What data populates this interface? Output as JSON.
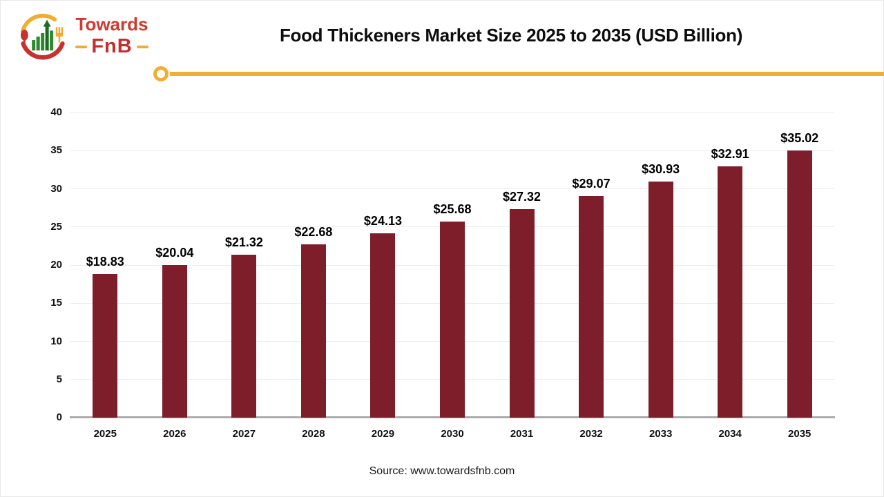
{
  "brand": {
    "name_top": "Towards",
    "name_bottom": "FnB"
  },
  "header": {
    "title": "Food Thickeners Market Size 2025 to 2035 (USD Billion)"
  },
  "chart_data": {
    "type": "bar",
    "title": "Food Thickeners Market Size 2025 to 2035 (USD Billion)",
    "categories": [
      "2025",
      "2026",
      "2027",
      "2028",
      "2029",
      "2030",
      "2031",
      "2032",
      "2033",
      "2034",
      "2035"
    ],
    "values": [
      18.83,
      20.04,
      21.32,
      22.68,
      24.13,
      25.68,
      27.32,
      29.07,
      30.93,
      32.91,
      35.02
    ],
    "data_labels": [
      "$18.83",
      "$20.04",
      "$21.32",
      "$22.68",
      "$24.13",
      "$25.68",
      "$27.32",
      "$29.07",
      "$30.93",
      "$32.91",
      "$35.02"
    ],
    "xlabel": "",
    "ylabel": "",
    "ylim": [
      0,
      40
    ],
    "yticks": [
      0,
      5,
      10,
      15,
      20,
      25,
      30,
      35,
      40
    ],
    "grid": true,
    "legend": "none",
    "bar_color": "#7f1e2b"
  },
  "footer": {
    "source": "Source: www.towardsfnb.com"
  },
  "colors": {
    "bar": "#7f1e2b",
    "accent_line": "#f0ae33",
    "brand_red": "#cd3a31",
    "brand_yellow": "#f0ad2e",
    "logo_green": "#2e8a2e",
    "grid": "#ececec",
    "axis_line": "#acacac",
    "title_text": "#0d0d0d"
  }
}
